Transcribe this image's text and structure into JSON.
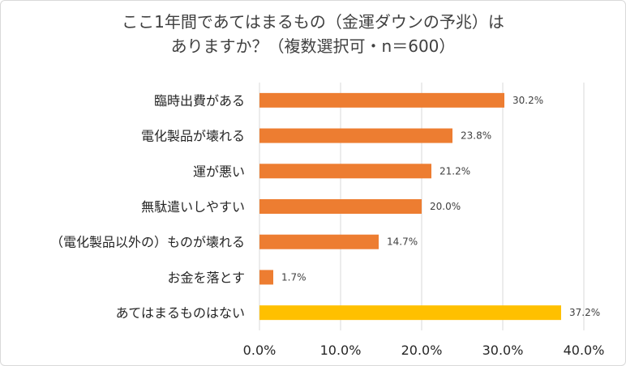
{
  "chart_data": {
    "type": "bar",
    "orientation": "horizontal",
    "title": [
      "ここ1年間であてはまるもの（金運ダウンの予兆）は",
      "ありますか？（複数選択可・n＝600）"
    ],
    "categories": [
      "臨時出費がある",
      "電化製品が壊れる",
      "運が悪い",
      "無駄遣いしやすい",
      "（電化製品以外の）ものが壊れる",
      "お金を落とす",
      "あてはまるものはない"
    ],
    "values": [
      30.2,
      23.8,
      21.2,
      20.0,
      14.7,
      1.7,
      37.2
    ],
    "value_labels": [
      "30.2%",
      "23.8%",
      "21.2%",
      "20.0%",
      "14.7%",
      "1.7%",
      "37.2%"
    ],
    "bar_colors": [
      "#ED7D31",
      "#ED7D31",
      "#ED7D31",
      "#ED7D31",
      "#ED7D31",
      "#ED7D31",
      "#FFC000"
    ],
    "xlim": [
      0,
      40
    ],
    "x_ticks": [
      0,
      10,
      20,
      30,
      40
    ],
    "x_tick_labels": [
      "0.0%",
      "10.0%",
      "20.0%",
      "30.0%",
      "40.0%"
    ],
    "gridlines": true,
    "legend": "none"
  }
}
